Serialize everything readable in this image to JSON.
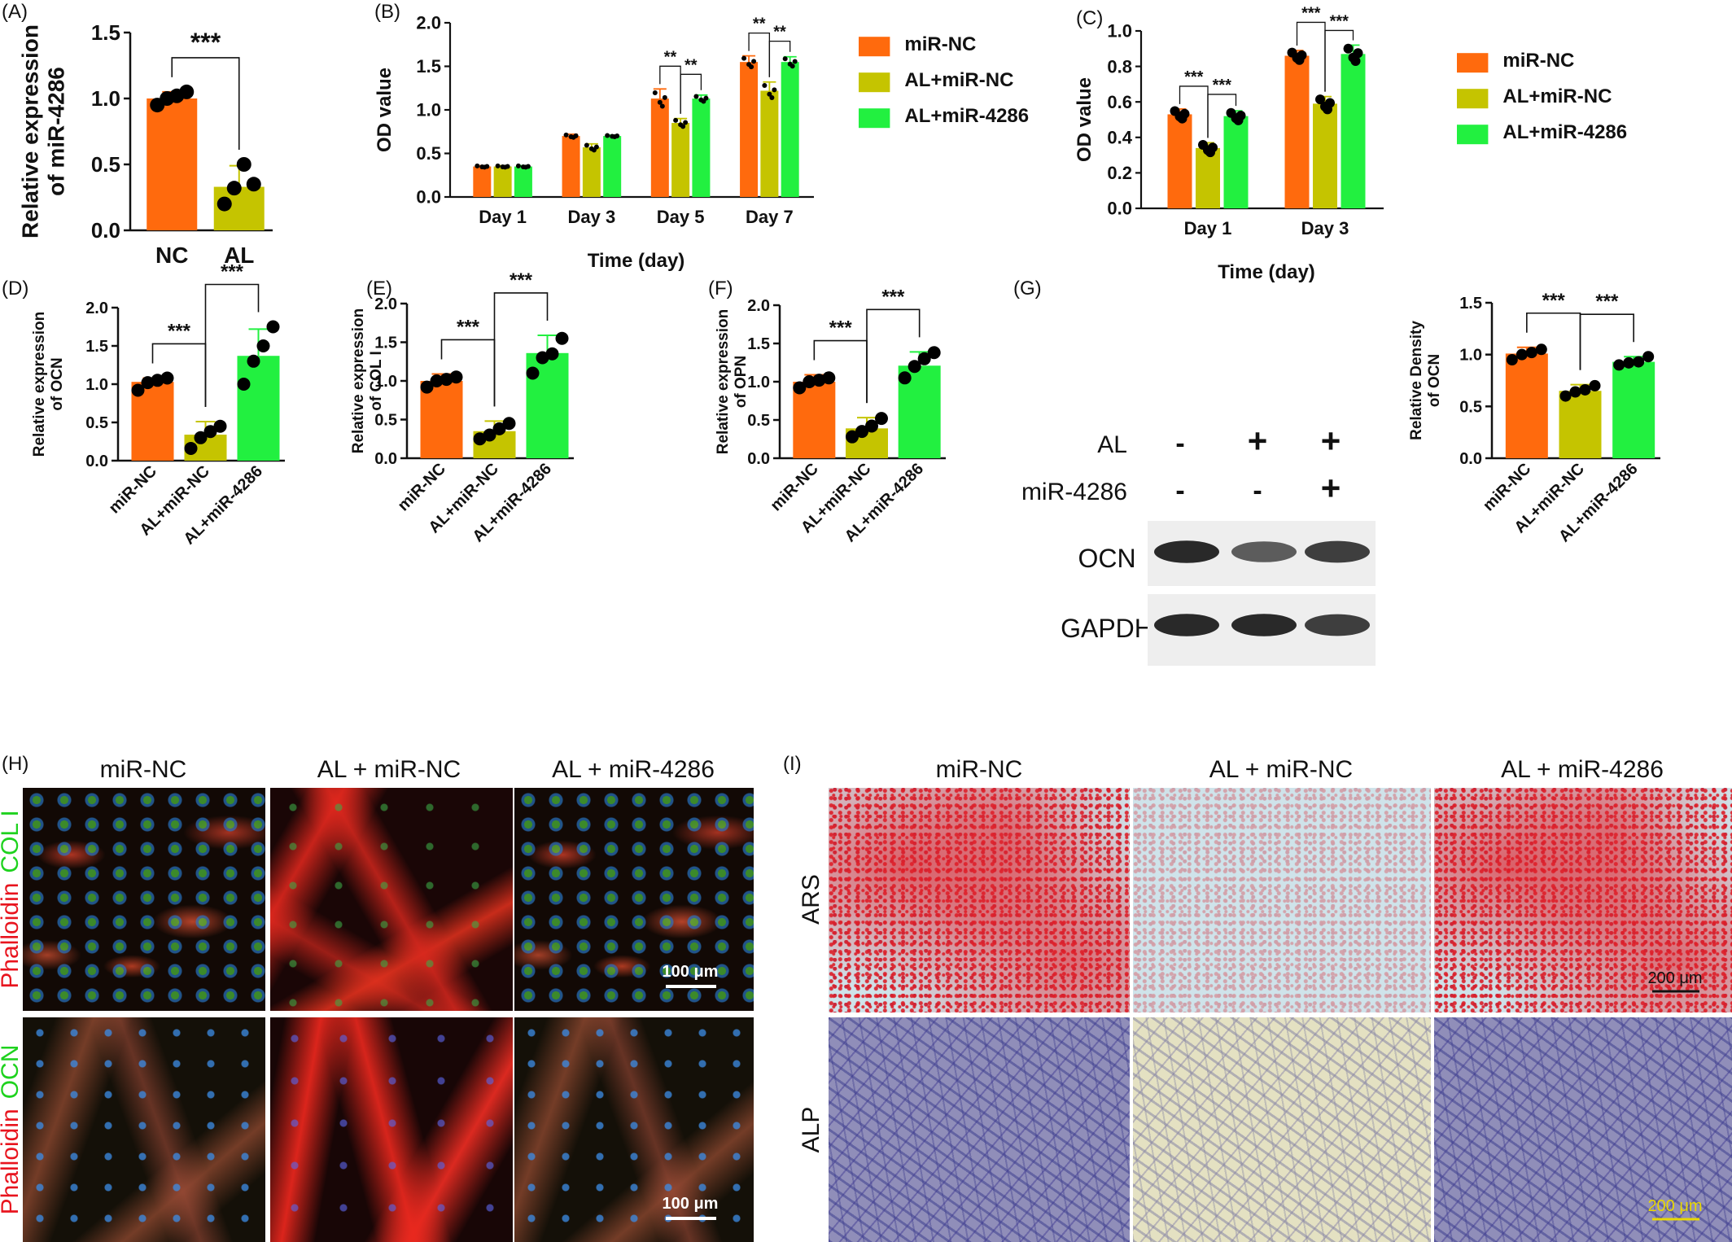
{
  "colors": {
    "miR-NC": "#ff6a0d",
    "AL+miR-NC": "#c5c400",
    "AL+miR-4286": "#22f040",
    "ink": "#111111"
  },
  "chart_data": [
    {
      "panel": "(A)",
      "type": "bar",
      "categories": [
        "NC",
        "AL"
      ],
      "values": [
        1.0,
        0.33
      ],
      "error": [
        0.05,
        0.16
      ],
      "points": [
        [
          0.95,
          1.0,
          1.02,
          1.05
        ],
        [
          0.2,
          0.32,
          0.5,
          0.35
        ]
      ],
      "ylabel": [
        "Relative expression",
        "of miR-4286"
      ],
      "ylim": [
        0,
        1.5
      ],
      "yticks": [
        "0.0",
        "0.5",
        "1.0",
        "1.5"
      ],
      "significance": [
        {
          "from": 0,
          "to": 1,
          "label": "***"
        }
      ]
    },
    {
      "panel": "(B)",
      "type": "bar",
      "categories": [
        "Day 1",
        "Day 3",
        "Day 5",
        "Day 7"
      ],
      "series": [
        {
          "name": "miR-NC",
          "values": [
            0.35,
            0.7,
            1.13,
            1.55
          ],
          "error": [
            0.01,
            0.02,
            0.11,
            0.07
          ]
        },
        {
          "name": "AL+miR-NC",
          "values": [
            0.35,
            0.57,
            0.85,
            1.22
          ],
          "error": [
            0.01,
            0.04,
            0.05,
            0.1
          ]
        },
        {
          "name": "AL+miR-4286",
          "values": [
            0.35,
            0.7,
            1.13,
            1.55
          ],
          "error": [
            0.01,
            0.01,
            0.04,
            0.06
          ]
        }
      ],
      "xlabel": "Time (day)",
      "ylabel": [
        "OD value"
      ],
      "ylim": [
        0,
        2.0
      ],
      "yticks": [
        "0.0",
        "0.5",
        "1.0",
        "1.5",
        "2.0"
      ],
      "legend": "right",
      "significance": [
        {
          "category": 2,
          "pair": [
            0,
            1
          ],
          "label": "**"
        },
        {
          "category": 2,
          "pair": [
            1,
            2
          ],
          "label": "**"
        },
        {
          "category": 3,
          "pair": [
            0,
            1
          ],
          "label": "**"
        },
        {
          "category": 3,
          "pair": [
            1,
            2
          ],
          "label": "**"
        }
      ]
    },
    {
      "panel": "(C)",
      "type": "bar",
      "categories": [
        "Day 1",
        "Day 3"
      ],
      "series": [
        {
          "name": "miR-NC",
          "values": [
            0.53,
            0.86
          ],
          "error": [
            0.03,
            0.03
          ]
        },
        {
          "name": "AL+miR-NC",
          "values": [
            0.34,
            0.59
          ],
          "error": [
            0.03,
            0.04
          ]
        },
        {
          "name": "AL+miR-4286",
          "values": [
            0.52,
            0.87
          ],
          "error": [
            0.03,
            0.05
          ]
        }
      ],
      "xlabel": "Time (day)",
      "ylabel": [
        "OD value"
      ],
      "ylim": [
        0,
        1.0
      ],
      "yticks": [
        "0.0",
        "0.2",
        "0.4",
        "0.6",
        "0.8",
        "1.0"
      ],
      "legend": "right",
      "significance": [
        {
          "category": 0,
          "pair": [
            0,
            1
          ],
          "label": "***"
        },
        {
          "category": 0,
          "pair": [
            1,
            2
          ],
          "label": "***"
        },
        {
          "category": 1,
          "pair": [
            0,
            1
          ],
          "label": "***"
        },
        {
          "category": 1,
          "pair": [
            1,
            2
          ],
          "label": "***"
        }
      ]
    },
    {
      "panel": "(D)",
      "type": "bar",
      "categories": [
        "miR-NC",
        "AL+miR-NC",
        "AL+miR-4286"
      ],
      "values": [
        1.03,
        0.34,
        1.37
      ],
      "error": [
        0.05,
        0.17,
        0.35
      ],
      "points": [
        [
          0.92,
          1.02,
          1.05,
          1.08
        ],
        [
          0.16,
          0.3,
          0.38,
          0.45
        ],
        [
          1.0,
          1.3,
          1.5,
          1.75
        ]
      ],
      "ylabel": [
        "Relative expression",
        "of OCN"
      ],
      "ylim": [
        0,
        2.0
      ],
      "yticks": [
        "0.0",
        "0.5",
        "1.0",
        "1.5",
        "2.0"
      ],
      "significance": [
        {
          "from": 0,
          "to": 1,
          "label": "***"
        },
        {
          "from": 1,
          "to": 2,
          "label": "***"
        }
      ]
    },
    {
      "panel": "(E)",
      "type": "bar",
      "categories": [
        "miR-NC",
        "AL+miR-NC",
        "AL+miR-4286"
      ],
      "values": [
        1.0,
        0.35,
        1.36
      ],
      "error": [
        0.09,
        0.13,
        0.23
      ],
      "points": [
        [
          0.92,
          1.0,
          1.02,
          1.05
        ],
        [
          0.25,
          0.3,
          0.38,
          0.45
        ],
        [
          1.1,
          1.3,
          1.35,
          1.55
        ]
      ],
      "ylabel": [
        "Relative expression",
        "of COL I"
      ],
      "ylim": [
        0,
        2.0
      ],
      "yticks": [
        "0.0",
        "0.5",
        "1.0",
        "1.5",
        "2.0"
      ],
      "significance": [
        {
          "from": 0,
          "to": 1,
          "label": "***"
        },
        {
          "from": 1,
          "to": 2,
          "label": "***"
        }
      ]
    },
    {
      "panel": "(F)",
      "type": "bar",
      "categories": [
        "miR-NC",
        "AL+miR-NC",
        "AL+miR-4286"
      ],
      "values": [
        1.0,
        0.39,
        1.21
      ],
      "error": [
        0.09,
        0.14,
        0.18
      ],
      "points": [
        [
          0.92,
          1.0,
          1.02,
          1.05
        ],
        [
          0.28,
          0.35,
          0.42,
          0.52
        ],
        [
          1.05,
          1.2,
          1.3,
          1.38
        ]
      ],
      "ylabel": [
        "Relative expression",
        "of OPN"
      ],
      "ylim": [
        0,
        2.0
      ],
      "yticks": [
        "0.0",
        "0.5",
        "1.0",
        "1.5",
        "2.0"
      ],
      "significance": [
        {
          "from": 0,
          "to": 1,
          "label": "***"
        },
        {
          "from": 1,
          "to": 2,
          "label": "***"
        }
      ]
    },
    {
      "panel": "(G)",
      "type": "bar",
      "categories": [
        "miR-NC",
        "AL+miR-NC",
        "AL+miR-4286"
      ],
      "values": [
        1.01,
        0.65,
        0.93
      ],
      "error": [
        0.06,
        0.06,
        0.05
      ],
      "points": [
        [
          0.95,
          1.0,
          1.02,
          1.05
        ],
        [
          0.6,
          0.64,
          0.66,
          0.7
        ],
        [
          0.9,
          0.92,
          0.93,
          0.98
        ]
      ],
      "ylabel": [
        "Relative Density",
        "of OCN"
      ],
      "ylim": [
        0,
        1.5
      ],
      "yticks": [
        "0.0",
        "0.5",
        "1.0",
        "1.5"
      ],
      "significance": [
        {
          "from": 0,
          "to": 1,
          "label": "***"
        },
        {
          "from": 1,
          "to": 2,
          "label": "***"
        }
      ]
    }
  ],
  "western_blot": {
    "rows": [
      {
        "label": "AL",
        "signs": [
          "-",
          "+",
          "+"
        ]
      },
      {
        "label": "miR-4286",
        "signs": [
          "-",
          "-",
          "+"
        ]
      }
    ],
    "bands": [
      {
        "label": "OCN",
        "intensity": [
          0.95,
          0.7,
          0.85
        ]
      },
      {
        "label": "GAPDH",
        "intensity": [
          0.95,
          0.95,
          0.85
        ]
      }
    ]
  },
  "panel_h": {
    "label": "(H)",
    "columns": [
      "miR-NC",
      "AL + miR-NC",
      "AL + miR-4286"
    ],
    "row1_stain": [
      {
        "text": "Phalloidin",
        "color": "#e8141e"
      },
      {
        "text": "COL I",
        "color": "#1ed21e"
      }
    ],
    "row2_stain": [
      {
        "text": "Phalloidin",
        "color": "#e8141e"
      },
      {
        "text": "OCN",
        "color": "#1ed21e"
      }
    ],
    "scale": "100 μm"
  },
  "panel_i": {
    "label": "(I)",
    "columns": [
      "miR-NC",
      "AL + miR-NC",
      "AL + miR-4286"
    ],
    "rows": [
      "ARS",
      "ALP"
    ],
    "scale": "200 μm"
  }
}
